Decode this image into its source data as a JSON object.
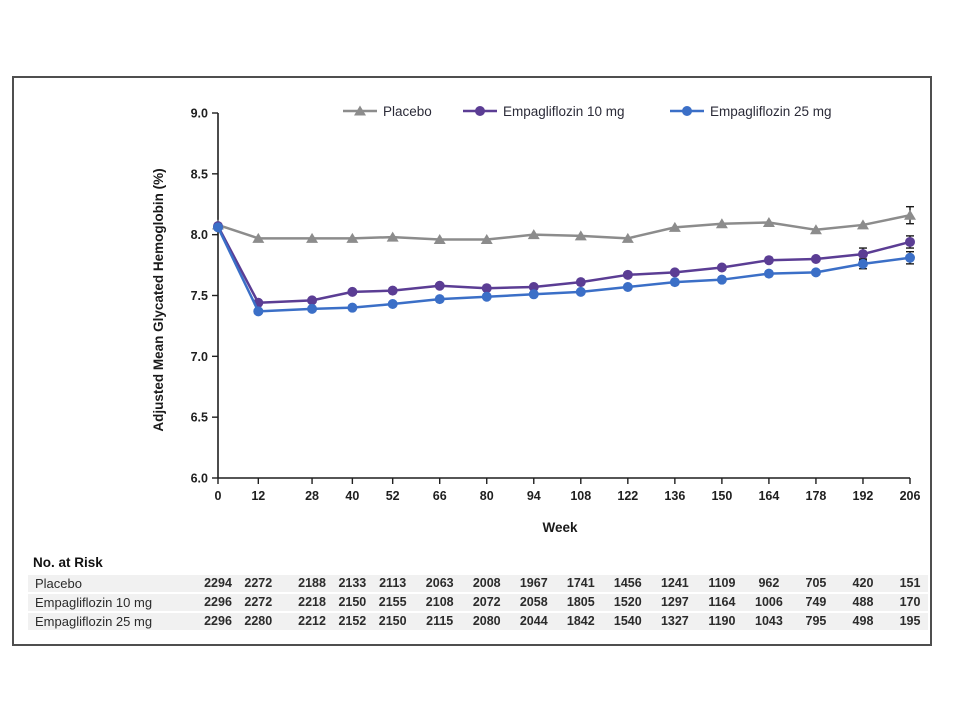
{
  "chart_data": {
    "type": "line",
    "title": "",
    "xlabel": "Week",
    "ylabel": "Adjusted Mean Glycated Hemoglobin (%)",
    "x": [
      0,
      12,
      28,
      40,
      52,
      66,
      80,
      94,
      108,
      122,
      136,
      150,
      164,
      178,
      192,
      206
    ],
    "xlim": [
      0,
      206
    ],
    "ylim": [
      6.0,
      9.0
    ],
    "yticks": [
      6.0,
      6.5,
      7.0,
      7.5,
      8.0,
      8.5,
      9.0
    ],
    "grid": false,
    "legend_position": "top",
    "series": [
      {
        "name": "Placebo",
        "color": "#8c8c8c",
        "marker": "triangle",
        "values": [
          8.08,
          7.97,
          7.97,
          7.97,
          7.98,
          7.96,
          7.96,
          8.0,
          7.99,
          7.97,
          8.06,
          8.09,
          8.1,
          8.04,
          8.08,
          8.16
        ],
        "error_bars": [
          {
            "week": 206,
            "value": 0.07
          }
        ]
      },
      {
        "name": "Empagliflozin 10 mg",
        "color": "#5b3d94",
        "marker": "circle",
        "values": [
          8.07,
          7.44,
          7.46,
          7.53,
          7.54,
          7.58,
          7.56,
          7.57,
          7.61,
          7.67,
          7.69,
          7.73,
          7.79,
          7.8,
          7.84,
          7.94
        ],
        "error_bars": [
          {
            "week": 192,
            "value": 0.05
          },
          {
            "week": 206,
            "value": 0.05
          }
        ]
      },
      {
        "name": "Empagliflozin 25 mg",
        "color": "#3b6fc7",
        "marker": "circle",
        "values": [
          8.06,
          7.37,
          7.39,
          7.4,
          7.43,
          7.47,
          7.49,
          7.51,
          7.53,
          7.57,
          7.61,
          7.63,
          7.68,
          7.69,
          7.76,
          7.81
        ],
        "error_bars": [
          {
            "week": 192,
            "value": 0.04
          },
          {
            "week": 206,
            "value": 0.05
          }
        ]
      }
    ]
  },
  "risk_table": {
    "title": "No. at Risk",
    "rows": [
      {
        "label": "Placebo",
        "values": [
          2294,
          2272,
          2188,
          2133,
          2113,
          2063,
          2008,
          1967,
          1741,
          1456,
          1241,
          1109,
          962,
          705,
          420,
          151
        ]
      },
      {
        "label": "Empagliflozin 10 mg",
        "values": [
          2296,
          2272,
          2218,
          2150,
          2155,
          2108,
          2072,
          2058,
          1805,
          1520,
          1297,
          1164,
          1006,
          749,
          488,
          170
        ]
      },
      {
        "label": "Empagliflozin 25 mg",
        "values": [
          2296,
          2280,
          2212,
          2152,
          2150,
          2115,
          2080,
          2044,
          1842,
          1540,
          1327,
          1190,
          1043,
          795,
          498,
          195
        ]
      }
    ]
  },
  "style": {
    "axis_color": "#1f1f1f",
    "error_bar_color": "#1a1a1a",
    "row_background": "#f1f1f1",
    "frame_border": "#4f4f4f"
  }
}
